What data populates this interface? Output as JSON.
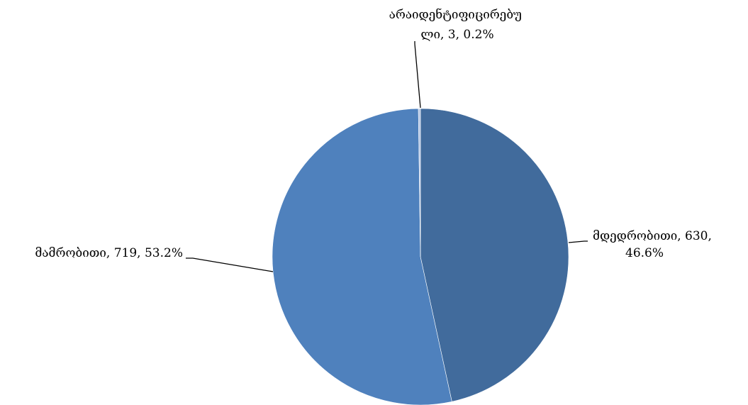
{
  "chart_data": {
    "type": "pie",
    "title": "",
    "slices": [
      {
        "name": "მდედრობითი",
        "value": 630,
        "percent": "46.6%",
        "color": "#416b9c",
        "label_lines": [
          "მდედრობითი, 630,",
          "46.6%"
        ]
      },
      {
        "name": "მამრობითი",
        "value": 719,
        "percent": "53.2%",
        "color": "#4f81bd",
        "label_lines": [
          "მამრობითი, 719, 53.2%"
        ]
      },
      {
        "name": "არაიდენტიფიცირებული",
        "value": 3,
        "percent": "0.2%",
        "color": "#b3c5e3",
        "label_lines": [
          "არაიდენტიფიცირებუ",
          "ლი, 3, 0.2%"
        ]
      }
    ],
    "start_angle_deg": 0,
    "direction": "clockwise",
    "legend": "none",
    "data_labels": "outside with leader lines"
  }
}
